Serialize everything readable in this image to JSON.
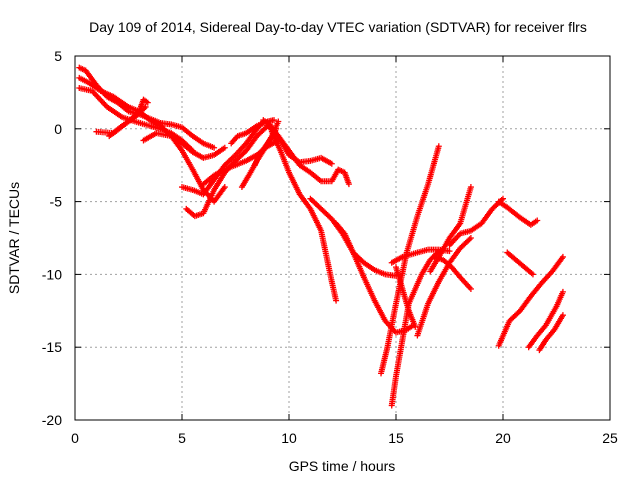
{
  "chart_data": {
    "type": "scatter",
    "title": "Day 109 of 2014, Sidereal Day-to-day VTEC variation (SDTVAR) for receiver flrs",
    "xlabel": "GPS time / hours",
    "ylabel": "SDTVAR / TECUs",
    "xlim": [
      0,
      25
    ],
    "ylim": [
      -20,
      5
    ],
    "xticks": [
      0,
      5,
      10,
      15,
      20,
      25
    ],
    "yticks": [
      -20,
      -15,
      -10,
      -5,
      0,
      5
    ],
    "grid": true,
    "marker": "plus",
    "color": "#ff0000",
    "series": [
      {
        "x": [
          0.2,
          0.5,
          1.0,
          1.5,
          2.0,
          2.5,
          3.0,
          3.5,
          4.0,
          4.5,
          5.0,
          5.5,
          6.0,
          6.5
        ],
        "y": [
          4.2,
          4.0,
          3.0,
          2.2,
          1.8,
          1.2,
          1.0,
          0.7,
          0.4,
          0.3,
          0.1,
          -0.5,
          -1.0,
          -1.3
        ]
      },
      {
        "x": [
          0.2,
          0.6,
          1.2,
          1.8,
          2.5,
          3.0,
          3.5,
          4.0,
          4.5,
          5.0,
          5.5,
          6.0,
          6.5,
          7.0
        ],
        "y": [
          3.5,
          3.2,
          2.6,
          2.2,
          1.5,
          1.2,
          0.6,
          0.2,
          -0.5,
          -1.5,
          -2.8,
          -4.2,
          -5.0,
          -4.0
        ]
      },
      {
        "x": [
          0.2,
          0.8,
          1.5,
          2.2,
          2.8,
          3.5,
          4.0,
          4.5,
          5.0,
          5.5
        ],
        "y": [
          2.8,
          2.6,
          1.5,
          0.8,
          0.5,
          0.2,
          0.0,
          -0.3,
          -0.8,
          -1.5
        ]
      },
      {
        "x": [
          1.0,
          1.8,
          2.5,
          3.0,
          3.2,
          3.4
        ],
        "y": [
          -0.2,
          -0.3,
          0.5,
          1.2,
          2.0,
          1.8
        ]
      },
      {
        "x": [
          1.6,
          2.2,
          2.8,
          3.3
        ],
        "y": [
          -0.5,
          0.2,
          0.8,
          1.5
        ]
      },
      {
        "x": [
          3.2,
          3.8,
          4.5,
          5.0,
          5.5,
          6.0,
          6.5,
          7.0
        ],
        "y": [
          -0.8,
          -0.3,
          -0.5,
          -1.0,
          -1.6,
          -2.0,
          -1.8,
          -1.3
        ]
      },
      {
        "x": [
          5.0,
          5.5,
          6.0,
          6.5,
          7.0,
          7.5,
          8.0,
          8.5,
          8.8
        ],
        "y": [
          -4.0,
          -4.2,
          -4.5,
          -3.5,
          -2.5,
          -1.8,
          -1.0,
          0.0,
          0.5
        ]
      },
      {
        "x": [
          5.2,
          5.6,
          6.0,
          6.5,
          7.0,
          7.5,
          8.0,
          8.5,
          9.0
        ],
        "y": [
          -5.5,
          -6.0,
          -5.8,
          -4.2,
          -3.0,
          -2.2,
          -1.5,
          -0.5,
          0.2
        ]
      },
      {
        "x": [
          6.0,
          6.5,
          7.0,
          7.5,
          8.0,
          8.5,
          9.0,
          9.5
        ],
        "y": [
          -3.8,
          -3.2,
          -2.8,
          -2.5,
          -2.2,
          -1.8,
          -1.2,
          -0.8
        ]
      },
      {
        "x": [
          7.3,
          7.6,
          8.0,
          8.5,
          9.0,
          9.3
        ],
        "y": [
          -1.0,
          -0.5,
          -0.3,
          0.2,
          0.5,
          0.6
        ]
      },
      {
        "x": [
          7.8,
          8.2,
          8.5,
          8.8,
          9.2,
          9.5
        ],
        "y": [
          -4.0,
          -3.0,
          -2.2,
          -1.5,
          -0.5,
          0.5
        ]
      },
      {
        "x": [
          8.4,
          8.6,
          8.9,
          9.2,
          9.4
        ],
        "y": [
          -2.5,
          -1.8,
          -1.2,
          -0.6,
          0.0
        ]
      },
      {
        "x": [
          8.8,
          9.1,
          9.5,
          10.0,
          10.5,
          11.0,
          11.5,
          12.0
        ],
        "y": [
          0.6,
          0.3,
          -0.5,
          -1.8,
          -2.3,
          -2.2,
          -2.0,
          -2.4
        ]
      },
      {
        "x": [
          9.0,
          9.5,
          10.0,
          10.5,
          11.0,
          11.5,
          12.0,
          12.3,
          12.6,
          12.8
        ],
        "y": [
          0.2,
          -0.5,
          -1.5,
          -2.5,
          -3.0,
          -3.6,
          -3.6,
          -2.8,
          -3.0,
          -3.8
        ]
      },
      {
        "x": [
          9.2,
          9.6,
          10.0,
          10.5,
          11.0,
          11.5,
          12.0,
          12.2
        ],
        "y": [
          -0.2,
          -1.5,
          -3.0,
          -4.5,
          -5.5,
          -7.0,
          -10.5,
          -11.8
        ]
      },
      {
        "x": [
          11.0,
          11.5,
          12.0,
          12.5,
          13.0,
          13.5,
          14.0,
          14.5,
          15.0
        ],
        "y": [
          -4.8,
          -5.5,
          -6.2,
          -7.2,
          -8.5,
          -9.2,
          -9.7,
          -10.0,
          -10.1
        ]
      },
      {
        "x": [
          12.2,
          12.6,
          13.0,
          13.5,
          14.0,
          14.5,
          15.0,
          15.5,
          15.8
        ],
        "y": [
          -6.5,
          -7.2,
          -8.5,
          -10.2,
          -11.8,
          -13.2,
          -14.0,
          -13.8,
          -13.5
        ]
      },
      {
        "x": [
          14.3,
          14.6,
          15.0,
          15.5,
          16.0,
          16.5,
          17.0
        ],
        "y": [
          -16.8,
          -15.0,
          -12.0,
          -8.5,
          -6.0,
          -3.8,
          -1.2
        ]
      },
      {
        "x": [
          14.8,
          15.0,
          15.3,
          15.6,
          15.9,
          16.2,
          16.6,
          17.0
        ],
        "y": [
          -19.0,
          -17.0,
          -14.5,
          -12.0,
          -11.0,
          -10.0,
          -9.0,
          -8.4
        ]
      },
      {
        "x": [
          14.8,
          15.3,
          16.0,
          16.5,
          17.0,
          17.5
        ],
        "y": [
          -9.2,
          -8.8,
          -8.5,
          -8.3,
          -8.3,
          -8.4
        ]
      },
      {
        "x": [
          15.0,
          15.3,
          15.6,
          15.9
        ],
        "y": [
          -9.5,
          -11.0,
          -12.5,
          -13.6
        ]
      },
      {
        "x": [
          16.0,
          16.5,
          17.0,
          17.5,
          18.0,
          18.5
        ],
        "y": [
          -14.2,
          -12.0,
          -10.5,
          -9.2,
          -8.2,
          -7.5
        ]
      },
      {
        "x": [
          16.8,
          17.2,
          17.6,
          18.0,
          18.5
        ],
        "y": [
          -8.8,
          -9.0,
          -9.5,
          -10.2,
          -11.0
        ]
      },
      {
        "x": [
          16.6,
          17.0,
          17.5,
          18.0,
          18.5
        ],
        "y": [
          -9.8,
          -8.8,
          -7.5,
          -6.5,
          -4.0
        ]
      },
      {
        "x": [
          17.5,
          18.0,
          18.5,
          19.0,
          19.5,
          20.0
        ],
        "y": [
          -8.0,
          -7.2,
          -7.0,
          -6.5,
          -5.5,
          -4.8
        ]
      },
      {
        "x": [
          19.8,
          20.2,
          20.8,
          21.3,
          21.6
        ],
        "y": [
          -5.0,
          -5.4,
          -6.1,
          -6.6,
          -6.3
        ]
      },
      {
        "x": [
          20.2,
          20.6,
          21.0,
          21.4
        ],
        "y": [
          -8.5,
          -9.0,
          -9.5,
          -10.0
        ]
      },
      {
        "x": [
          19.8,
          20.3,
          20.8,
          21.3,
          21.8,
          22.3,
          22.8
        ],
        "y": [
          -14.9,
          -13.2,
          -12.5,
          -11.5,
          -10.6,
          -9.8,
          -8.8
        ]
      },
      {
        "x": [
          21.2,
          21.6,
          22.0,
          22.5,
          22.8
        ],
        "y": [
          -15.0,
          -14.2,
          -13.5,
          -12.2,
          -11.2
        ]
      },
      {
        "x": [
          21.7,
          22.0,
          22.4,
          22.8
        ],
        "y": [
          -15.2,
          -14.5,
          -13.8,
          -12.8
        ]
      }
    ]
  }
}
